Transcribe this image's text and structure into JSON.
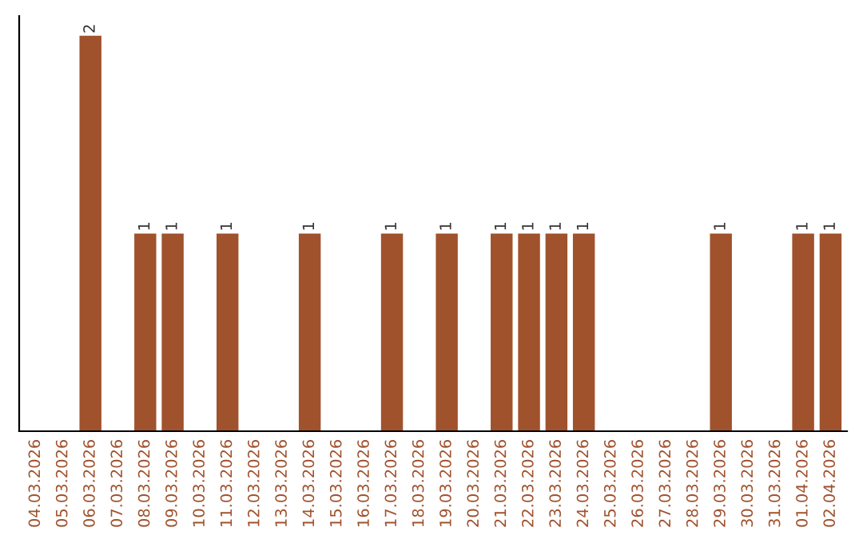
{
  "chart_data": {
    "type": "bar",
    "categories": [
      "04.03.2026",
      "05.03.2026",
      "06.03.2026",
      "07.03.2026",
      "08.03.2026",
      "09.03.2026",
      "10.03.2026",
      "11.03.2026",
      "12.03.2026",
      "13.03.2026",
      "14.03.2026",
      "15.03.2026",
      "16.03.2026",
      "17.03.2026",
      "18.03.2026",
      "19.03.2026",
      "20.03.2026",
      "21.03.2026",
      "22.03.2026",
      "23.03.2026",
      "24.03.2026",
      "25.03.2026",
      "26.03.2026",
      "27.03.2026",
      "28.03.2026",
      "29.03.2026",
      "30.03.2026",
      "31.03.2026",
      "01.04.2026",
      "02.04.2026"
    ],
    "values": [
      0,
      0,
      2,
      0,
      1,
      1,
      0,
      1,
      0,
      0,
      1,
      0,
      0,
      1,
      0,
      1,
      0,
      1,
      1,
      1,
      1,
      0,
      0,
      0,
      0,
      1,
      0,
      0,
      1,
      1
    ],
    "value_labels": [
      null,
      null,
      "2",
      null,
      "1",
      "1",
      null,
      "1",
      null,
      null,
      "1",
      null,
      null,
      "1",
      null,
      "1",
      null,
      "1",
      "1",
      "1",
      "1",
      null,
      null,
      null,
      null,
      "1",
      null,
      null,
      "1",
      "1"
    ],
    "color": "#a0522d",
    "ylim": [
      0,
      2.1
    ],
    "tick_labels": "x",
    "grid": false,
    "legend": false
  }
}
